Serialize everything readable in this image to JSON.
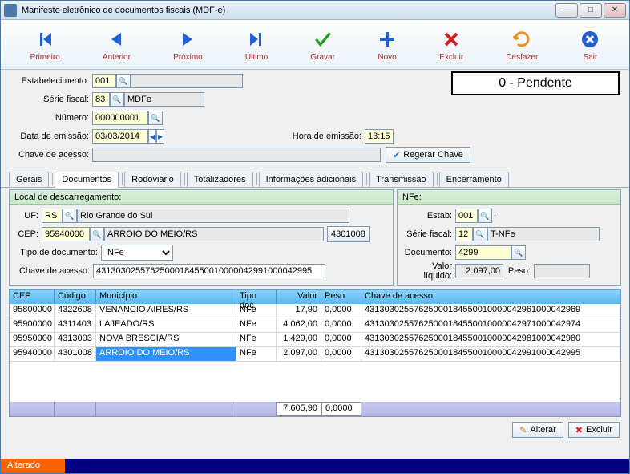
{
  "window": {
    "title": "Manifesto eletrônico de documentos fiscais (MDF-e)"
  },
  "toolbar": {
    "primeiro": "Primeiro",
    "anterior": "Anterior",
    "proximo": "Próximo",
    "ultimo": "Último",
    "gravar": "Gravar",
    "novo": "Novo",
    "excluir": "Excluir",
    "desfazer": "Desfazer",
    "sair": "Sair"
  },
  "status_box": "0 - Pendente",
  "form": {
    "labels": {
      "estabelecimento": "Estabelecimento:",
      "serie": "Série fiscal:",
      "numero": "Número:",
      "data": "Data de emissão:",
      "hora": "Hora de emissão:",
      "chave": "Chave de acesso:"
    },
    "estabelecimento": "001",
    "serie": "83",
    "serie_desc": "MDFe",
    "numero": "000000001",
    "data": "03/03/2014",
    "hora": "13:15",
    "chave": "",
    "regerar_btn": "Regerar Chave"
  },
  "tabs": [
    "Gerais",
    "Documentos",
    "Rodoviário",
    "Totalizadores",
    "Informações adicionais",
    "Transmissão",
    "Encerramento"
  ],
  "active_tab": 1,
  "local": {
    "title": "Local de descarregamento:",
    "labels": {
      "uf": "UF:",
      "cep": "CEP:",
      "tipo": "Tipo de documento:",
      "chave": "Chave de acesso:"
    },
    "uf": "RS",
    "uf_desc": "Rio Grande do Sul",
    "cep": "95940000",
    "cep_desc": "ARROIO DO MEIO/RS",
    "cep_btn": "4301008",
    "tipo": "NFe",
    "chave": "43130302557625000184550010000042991000042995"
  },
  "nfe": {
    "title": "NFe:",
    "labels": {
      "estab": "Estab:",
      "serie": "Série fiscal:",
      "doc": "Documento:",
      "valor": "Valor líquido:",
      "peso": "Peso:"
    },
    "estab": "001",
    "serie": "12",
    "serie_desc": "T-NFe",
    "doc": "4299",
    "valor": "2.097,00",
    "peso": ""
  },
  "grid": {
    "headers": [
      "CEP",
      "Código",
      "Município",
      "Tipo doc",
      "Valor",
      "Peso",
      "Chave de acesso"
    ],
    "rows": [
      [
        "95800000",
        "4322608",
        "VENANCIO AIRES/RS",
        "NFe",
        "17,90",
        "0,0000",
        "43130302557625000184550010000042961000042969"
      ],
      [
        "95900000",
        "4311403",
        "LAJEADO/RS",
        "NFe",
        "4.062,00",
        "0,0000",
        "43130302557625000184550010000042971000042974"
      ],
      [
        "95950000",
        "4313003",
        "NOVA BRESCIA/RS",
        "NFe",
        "1.429,00",
        "0,0000",
        "43130302557625000184550010000042981000042980"
      ],
      [
        "95940000",
        "4301008",
        "ARROIO DO MEIO/RS",
        "NFe",
        "2.097,00",
        "0,0000",
        "43130302557625000184550010000042991000042995"
      ]
    ],
    "selected": 3,
    "totals": {
      "valor": "7.605,90",
      "peso": "0,0000"
    }
  },
  "actions": {
    "alterar": "Alterar",
    "excluir": "Excluir"
  },
  "statusbar": {
    "alterado": "Alterado"
  }
}
